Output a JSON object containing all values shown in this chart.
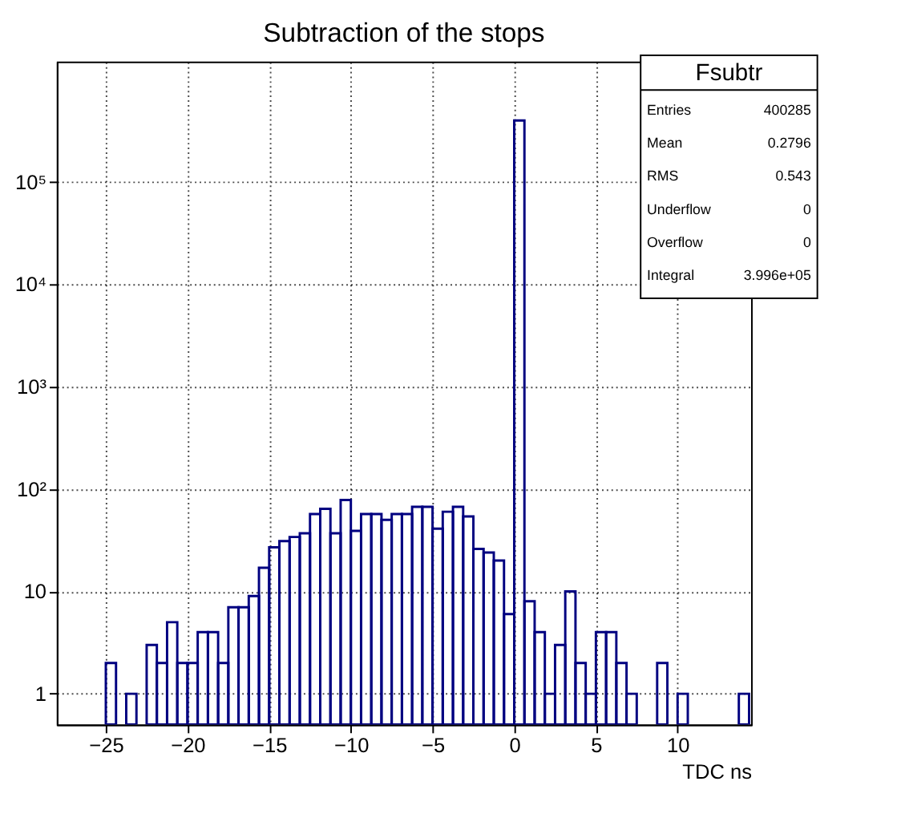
{
  "chart_data": {
    "type": "histogram",
    "title": "Subtraction of the stops",
    "xlabel": "TDC ns",
    "color": "#000080",
    "bins": [
      -25,
      -24.375,
      -23.75,
      -23.125,
      -22.5,
      -21.875,
      -21.25,
      -20.625,
      -20,
      -19.375,
      -18.75,
      -18.125,
      -17.5,
      -16.875,
      -16.25,
      -15.625,
      -15,
      -14.375,
      -13.75,
      -13.125,
      -12.5,
      -11.875,
      -11.25,
      -10.625,
      -10,
      -9.375,
      -8.75,
      -8.125,
      -7.5,
      -6.875,
      -6.25,
      -5.625,
      -5,
      -4.375,
      -3.75,
      -3.125,
      -2.5,
      -1.875,
      -1.25,
      -0.625,
      0,
      0.625,
      1.25,
      1.875,
      2.5,
      3.125,
      3.75,
      4.375,
      5,
      5.625,
      6.25,
      6.875,
      7.5,
      8.125,
      8.75,
      9.375,
      10,
      10.625,
      11.25,
      11.875,
      12.5,
      13.125,
      13.75,
      14.375
    ],
    "values": [
      2,
      null,
      1,
      null,
      3,
      2,
      5,
      2,
      2,
      4,
      4,
      2,
      7,
      7,
      9,
      17,
      27,
      31,
      34,
      37,
      57,
      64,
      37,
      78,
      39,
      57,
      57,
      50,
      57,
      57,
      67,
      67,
      41,
      60,
      67,
      54,
      26,
      24,
      20,
      6,
      398000,
      8,
      4,
      1,
      3,
      10,
      2,
      1,
      4,
      4,
      2,
      1,
      null,
      null,
      2,
      null,
      1,
      null,
      null,
      null,
      null,
      null,
      1
    ],
    "log": true,
    "xlim": [
      -28,
      14.5
    ],
    "ylim": [
      0.5,
      1500000
    ],
    "xticks": [
      -25,
      -20,
      -15,
      -10,
      -5,
      0,
      5,
      10
    ],
    "yticks": [
      {
        "value": 1,
        "label": "1"
      },
      {
        "value": 10,
        "label": "10"
      },
      {
        "value": 100,
        "label": "10²"
      },
      {
        "value": 1000,
        "label": "10³"
      },
      {
        "value": 10000,
        "label": "10⁴"
      },
      {
        "value": 100000,
        "label": "10⁵"
      }
    ],
    "grid": true,
    "annotations": [
      "Fsubtr",
      "Entries",
      "400285",
      "Mean",
      "0.2796",
      "RMS",
      "0.543",
      "Underflow",
      "0",
      "Overflow",
      "0",
      "Integral",
      "3.996e+05"
    ]
  }
}
